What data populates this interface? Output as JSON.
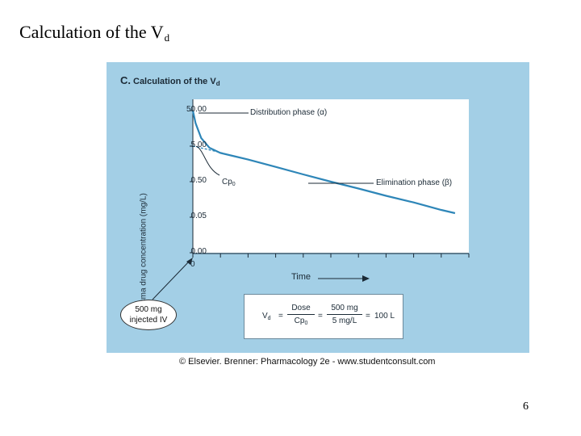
{
  "slide": {
    "title_main": "Calculation of the V",
    "title_sub": "d",
    "page_number": "6"
  },
  "figure": {
    "panel_letter": "C.",
    "panel_title_main": "Calculation of the V",
    "panel_title_sub": "d",
    "dose_line1": "500 mg",
    "dose_line2": "injected IV",
    "cp0_label": "Cp",
    "cp0_sub": "0",
    "credit": "© Elsevier. Brenner: Pharmacology 2e - www.studentconsult.com",
    "formula": {
      "lhs": "V",
      "lhs_sub": "d",
      "eq1": "=",
      "num1": "Dose",
      "den1": "Cp",
      "den1_sub": "0",
      "eq2": "=",
      "num2": "500 mg",
      "den2": "5 mg/L",
      "eq3": "=",
      "result": "100 L"
    },
    "colors": {
      "panel_bg": "#a3cfe6",
      "curve": "#2e86b8",
      "plot_bg": "#ffffff"
    }
  },
  "chart_data": {
    "type": "line",
    "title": "Calculation of the Vd",
    "xlabel": "Time",
    "ylabel": "Plasma drug concentration (mg/L)",
    "x_tick_labels": [
      "0"
    ],
    "x_tick_count": 10,
    "y_tick_labels": [
      "50.00",
      "5.00",
      "0.50",
      "0.05",
      "0.00"
    ],
    "y_scale": "log",
    "xlim": [
      0,
      10
    ],
    "grid": false,
    "series": [
      {
        "style": "solid",
        "x": [
          0,
          0.1,
          0.3,
          0.6,
          1.0,
          1.5,
          2.0,
          3.0,
          4.0,
          5.0,
          6.0,
          7.0,
          8.0,
          9.0,
          9.5
        ],
        "y": [
          50,
          22,
          8.5,
          4.5,
          3.2,
          2.6,
          2.1,
          1.3,
          0.8,
          0.5,
          0.32,
          0.2,
          0.13,
          0.08,
          0.065
        ]
      },
      {
        "style": "dashed",
        "x": [
          0,
          0.5,
          1.0,
          1.5
        ],
        "y": [
          5.0,
          4.1,
          3.3,
          2.6
        ]
      }
    ],
    "annotations": [
      {
        "text": "Distribution phase (α)"
      },
      {
        "text": "Elimination phase (β)"
      }
    ]
  }
}
